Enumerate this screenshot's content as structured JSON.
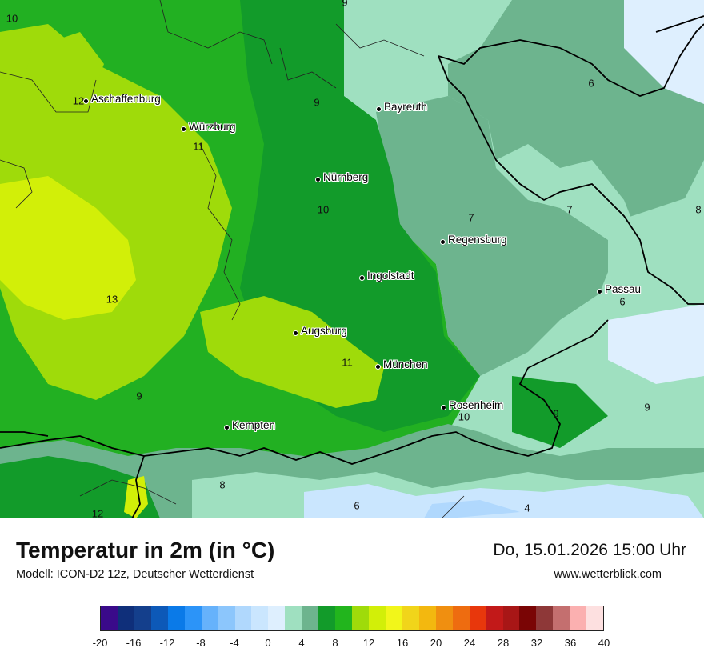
{
  "map": {
    "cities": [
      {
        "name": "Aschaffenburg"
      },
      {
        "name": "Würzburg"
      },
      {
        "name": "Bayreuth"
      },
      {
        "name": "Nürnberg"
      },
      {
        "name": "Regensburg"
      },
      {
        "name": "Ingolstadt"
      },
      {
        "name": "Passau"
      },
      {
        "name": "Augsburg"
      },
      {
        "name": "München"
      },
      {
        "name": "Rosenheim"
      },
      {
        "name": "Kempten"
      }
    ],
    "values": [
      "10",
      "9",
      "12",
      "9",
      "11",
      "10",
      "7",
      "7",
      "8",
      "6",
      "13",
      "6",
      "11",
      "9",
      "10",
      "9",
      "9",
      "8",
      "12",
      "6",
      "4"
    ]
  },
  "footer": {
    "title": "Temperatur in 2m (in °C)",
    "model": "Modell: ICON-D2 12z, Deutscher Wetterdienst",
    "datetime": "Do, 15.01.2026 15:00 Uhr",
    "site": "www.wetterblick.com"
  },
  "legend": {
    "colors": [
      "#3a0a8a",
      "#0f2f7a",
      "#143f8c",
      "#0d59b8",
      "#0a7ae8",
      "#2c94f8",
      "#66b2fb",
      "#8cc6fc",
      "#b0d8fd",
      "#cae6fe",
      "#deeffe",
      "#9fe0c0",
      "#6db48e",
      "#129b2a",
      "#22b51d",
      "#9fdb0a",
      "#d2ef08",
      "#f2f61a",
      "#f1d51a",
      "#f3b80f",
      "#f08f10",
      "#ee6c10",
      "#e8370c",
      "#c21919",
      "#a81616",
      "#7a0505",
      "#8e3838",
      "#c46f6f",
      "#fbb0b0",
      "#fde0e0"
    ],
    "ticks": [
      "-20",
      "-16",
      "-12",
      "-8",
      "-4",
      "0",
      "4",
      "8",
      "12",
      "16",
      "20",
      "24",
      "28",
      "32",
      "36",
      "40"
    ],
    "min": -20,
    "max": 40
  }
}
